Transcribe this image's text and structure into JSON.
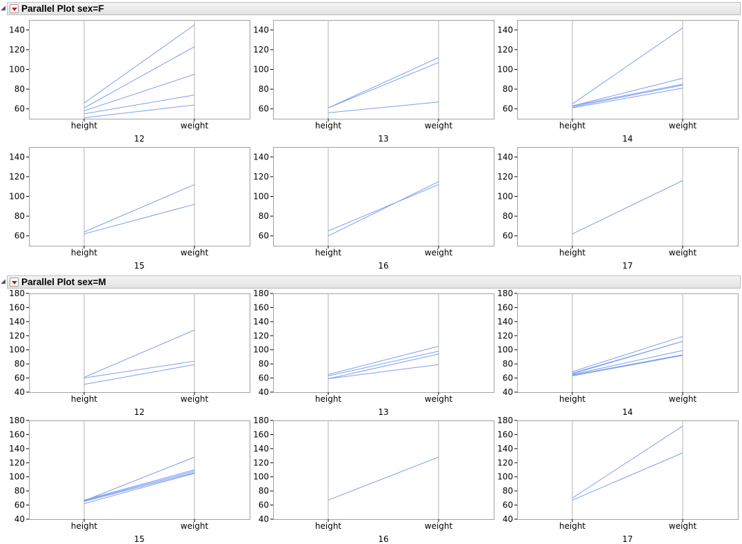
{
  "sections": [
    {
      "title": "Parallel Plot sex=F",
      "ylim": [
        50,
        150
      ],
      "yticks": [
        60,
        80,
        100,
        120,
        140
      ],
      "panels": [
        {
          "group": "12",
          "lines": [
            [
              51,
              64
            ],
            [
              55,
              74
            ],
            [
              58,
              95
            ],
            [
              61,
              123
            ],
            [
              66,
              145
            ]
          ]
        },
        {
          "group": "13",
          "lines": [
            [
              56,
              67
            ],
            [
              61,
              107
            ],
            [
              61,
              112
            ]
          ]
        },
        {
          "group": "14",
          "lines": [
            [
              61,
              81
            ],
            [
              62,
              84
            ],
            [
              63,
              85
            ],
            [
              63,
              91
            ],
            [
              65,
              142
            ]
          ]
        },
        {
          "group": "15",
          "lines": [
            [
              62,
              92
            ],
            [
              64,
              112
            ]
          ]
        },
        {
          "group": "16",
          "lines": [
            [
              60,
              115
            ],
            [
              65,
              112
            ]
          ]
        },
        {
          "group": "17",
          "lines": [
            [
              62,
              116
            ]
          ]
        }
      ]
    },
    {
      "title": "Parallel Plot sex=M",
      "ylim": [
        40,
        180
      ],
      "yticks": [
        40,
        60,
        80,
        100,
        120,
        140,
        160,
        180
      ],
      "panels": [
        {
          "group": "12",
          "lines": [
            [
              51,
              79
            ],
            [
              60,
              84
            ],
            [
              61,
              128
            ]
          ]
        },
        {
          "group": "13",
          "lines": [
            [
              59,
              79
            ],
            [
              59,
              94
            ],
            [
              63,
              98
            ],
            [
              65,
              105
            ]
          ]
        },
        {
          "group": "14",
          "lines": [
            [
              63,
              92
            ],
            [
              64,
              93
            ],
            [
              65,
              99
            ],
            [
              66,
              112
            ],
            [
              67,
              112
            ],
            [
              69,
              119
            ]
          ]
        },
        {
          "group": "15",
          "lines": [
            [
              62,
              105
            ],
            [
              65,
              106
            ],
            [
              66,
              108
            ],
            [
              67,
              110
            ],
            [
              66,
              128
            ]
          ]
        },
        {
          "group": "16",
          "lines": [
            [
              67,
              128
            ]
          ]
        },
        {
          "group": "17",
          "lines": [
            [
              67,
              134
            ],
            [
              70,
              172
            ]
          ]
        }
      ]
    }
  ],
  "axes": [
    "height",
    "weight"
  ],
  "colors": {
    "line": "#7b9cf0",
    "axis": "#b0b0b0",
    "frame": "#a0a0a0"
  },
  "chart_data": [
    {
      "type": "line",
      "title": "Parallel Plot sex=F",
      "categories": [
        "height",
        "weight"
      ],
      "ylim": [
        50,
        150
      ],
      "panels": [
        {
          "group": "12",
          "series": [
            {
              "values": [
                51,
                64
              ]
            },
            {
              "values": [
                55,
                74
              ]
            },
            {
              "values": [
                58,
                95
              ]
            },
            {
              "values": [
                61,
                123
              ]
            },
            {
              "values": [
                66,
                145
              ]
            }
          ]
        },
        {
          "group": "13",
          "series": [
            {
              "values": [
                56,
                67
              ]
            },
            {
              "values": [
                61,
                107
              ]
            },
            {
              "values": [
                61,
                112
              ]
            }
          ]
        },
        {
          "group": "14",
          "series": [
            {
              "values": [
                61,
                81
              ]
            },
            {
              "values": [
                62,
                84
              ]
            },
            {
              "values": [
                63,
                85
              ]
            },
            {
              "values": [
                63,
                91
              ]
            },
            {
              "values": [
                65,
                142
              ]
            }
          ]
        },
        {
          "group": "15",
          "series": [
            {
              "values": [
                62,
                92
              ]
            },
            {
              "values": [
                64,
                112
              ]
            }
          ]
        },
        {
          "group": "16",
          "series": [
            {
              "values": [
                60,
                115
              ]
            },
            {
              "values": [
                65,
                112
              ]
            }
          ]
        },
        {
          "group": "17",
          "series": [
            {
              "values": [
                62,
                116
              ]
            }
          ]
        }
      ]
    },
    {
      "type": "line",
      "title": "Parallel Plot sex=M",
      "categories": [
        "height",
        "weight"
      ],
      "ylim": [
        40,
        180
      ],
      "panels": [
        {
          "group": "12",
          "series": [
            {
              "values": [
                51,
                79
              ]
            },
            {
              "values": [
                60,
                84
              ]
            },
            {
              "values": [
                61,
                128
              ]
            }
          ]
        },
        {
          "group": "13",
          "series": [
            {
              "values": [
                59,
                79
              ]
            },
            {
              "values": [
                59,
                94
              ]
            },
            {
              "values": [
                63,
                98
              ]
            },
            {
              "values": [
                65,
                105
              ]
            }
          ]
        },
        {
          "group": "14",
          "series": [
            {
              "values": [
                63,
                92
              ]
            },
            {
              "values": [
                64,
                93
              ]
            },
            {
              "values": [
                65,
                99
              ]
            },
            {
              "values": [
                66,
                112
              ]
            },
            {
              "values": [
                67,
                112
              ]
            },
            {
              "values": [
                69,
                119
              ]
            }
          ]
        },
        {
          "group": "15",
          "series": [
            {
              "values": [
                62,
                105
              ]
            },
            {
              "values": [
                65,
                106
              ]
            },
            {
              "values": [
                66,
                108
              ]
            },
            {
              "values": [
                67,
                110
              ]
            },
            {
              "values": [
                66,
                128
              ]
            }
          ]
        },
        {
          "group": "16",
          "series": [
            {
              "values": [
                67,
                128
              ]
            }
          ]
        },
        {
          "group": "17",
          "series": [
            {
              "values": [
                67,
                134
              ]
            },
            {
              "values": [
                70,
                172
              ]
            }
          ]
        }
      ]
    }
  ]
}
